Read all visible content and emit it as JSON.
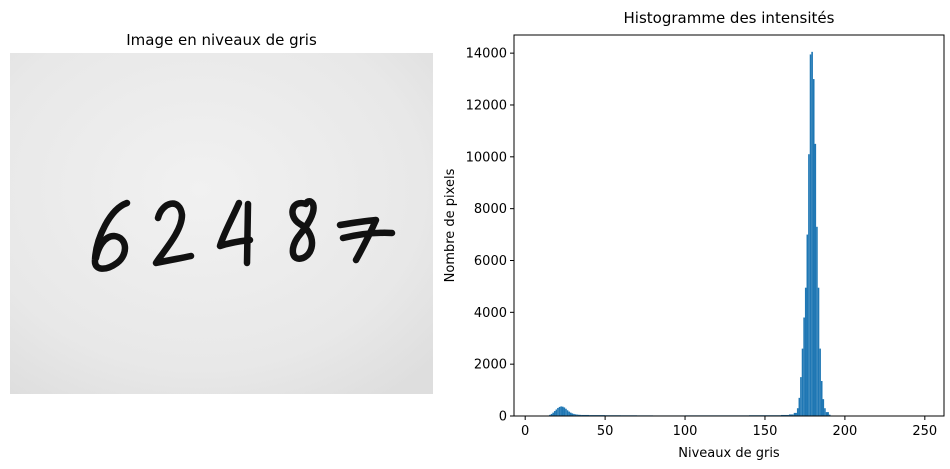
{
  "image_panel": {
    "title": "Image en niveaux de gris",
    "digits_text": "62487"
  },
  "chart_data": {
    "type": "bar",
    "title": "Histogramme des intensités",
    "xlabel": "Niveaux de gris",
    "ylabel": "Nombre de pixels",
    "xlim": [
      -7,
      262
    ],
    "ylim": [
      0,
      14700
    ],
    "xticks": [
      0,
      50,
      100,
      150,
      200,
      250
    ],
    "yticks": [
      0,
      2000,
      4000,
      6000,
      8000,
      10000,
      12000,
      14000
    ],
    "grid": false,
    "legend": false,
    "bar_color": "#1f77b4",
    "bin_width": 1,
    "bins": [
      14,
      15,
      16,
      17,
      18,
      19,
      20,
      21,
      22,
      23,
      24,
      25,
      26,
      27,
      28,
      29,
      30,
      31,
      32,
      33,
      34,
      35,
      40,
      50,
      60,
      70,
      80,
      90,
      100,
      110,
      120,
      130,
      140,
      150,
      160,
      165,
      168,
      170,
      171,
      172,
      173,
      174,
      175,
      176,
      177,
      178,
      179,
      180,
      181,
      182,
      183,
      184,
      185,
      186,
      187,
      188,
      190
    ],
    "values": [
      20,
      45,
      80,
      130,
      190,
      250,
      310,
      350,
      370,
      360,
      330,
      280,
      220,
      170,
      130,
      100,
      80,
      65,
      55,
      48,
      44,
      40,
      35,
      30,
      28,
      25,
      22,
      22,
      25,
      25,
      25,
      25,
      30,
      30,
      40,
      60,
      120,
      300,
      700,
      1500,
      2600,
      3800,
      4950,
      7000,
      10100,
      13950,
      14050,
      13000,
      10500,
      7300,
      4950,
      2600,
      1350,
      650,
      300,
      150,
      50
    ]
  }
}
